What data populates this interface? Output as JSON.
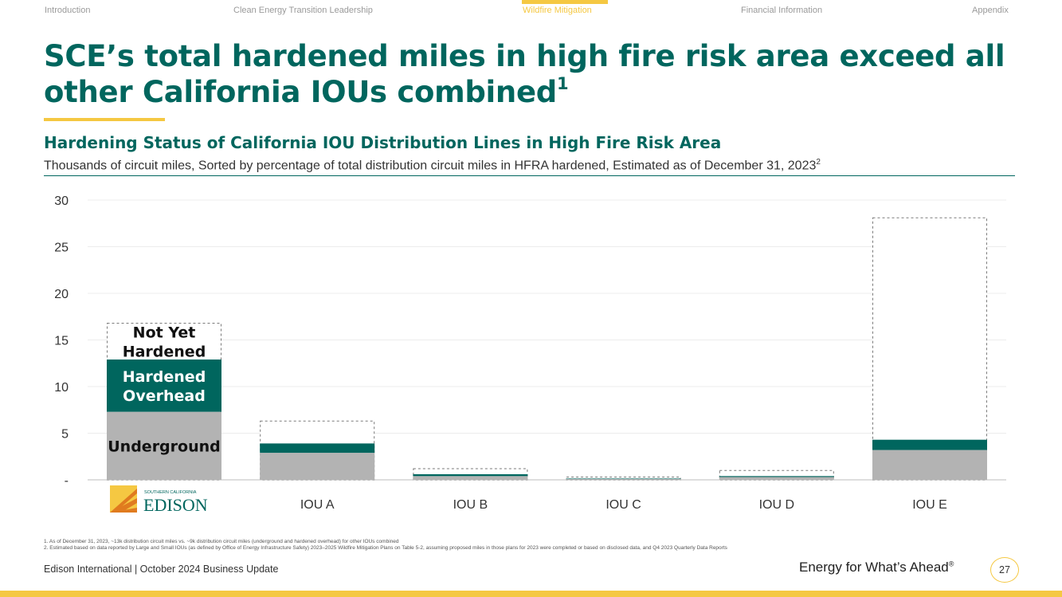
{
  "nav": {
    "items": [
      {
        "label": "Introduction",
        "active": false
      },
      {
        "label": "Clean Energy Transition Leadership",
        "active": false
      },
      {
        "label": "Wildfire Mitigation",
        "active": true
      },
      {
        "label": "Financial Information",
        "active": false
      },
      {
        "label": "Appendix",
        "active": false
      }
    ]
  },
  "slide": {
    "title": "SCE’s total hardened miles in high fire risk area exceed all other California IOUs combined",
    "title_footnote": "1",
    "chart_heading": "Hardening Status of California IOU Distribution Lines in High Fire Risk Area",
    "chart_subtitle": "Thousands of circuit miles, Sorted by percentage of total distribution circuit miles in HFRA hardened, Estimated as of December 31, 2023",
    "chart_subtitle_footnote": "2"
  },
  "logo": {
    "small_text": "SOUTHERN CALIFORNIA",
    "name": "EDISON"
  },
  "chart_data": {
    "type": "bar",
    "stacked": true,
    "categories": [
      "SCE",
      "IOU A",
      "IOU B",
      "IOU C",
      "IOU D",
      "IOU E"
    ],
    "category_labels": [
      "",
      "IOU A",
      "IOU B",
      "IOU C",
      "IOU D",
      "IOU E"
    ],
    "series": [
      {
        "name": "Underground",
        "values": [
          7.3,
          2.9,
          0.4,
          0.1,
          0.3,
          3.2
        ]
      },
      {
        "name": "Hardened Overhead",
        "values": [
          5.6,
          1.0,
          0.2,
          0.05,
          0.1,
          1.1
        ]
      },
      {
        "name": "Not Yet Hardened",
        "values": [
          3.9,
          2.4,
          0.6,
          0.15,
          0.6,
          23.8
        ]
      }
    ],
    "segment_labels": [
      "Underground",
      "Hardened Overhead",
      "Not Yet Hardened"
    ],
    "ylim": [
      0,
      30
    ],
    "yticks": [
      0,
      5,
      10,
      15,
      20,
      25,
      30
    ],
    "ytick_labels": [
      "-",
      "5",
      "10",
      "15",
      "20",
      "25",
      "30"
    ],
    "grid": true,
    "xlabel": "",
    "ylabel": "",
    "colors": {
      "Underground": "#b3b3b3",
      "Hardened Overhead": "#00665e",
      "Not Yet Hardened": "#ffffff"
    }
  },
  "footnotes": [
    "1.  As of December 31, 2023, ~13k distribution circuit miles vs. ~9k distribution circuit miles (underground and hardened overhead) for other IOUs combined",
    "2.  Estimated based on data reported by Large and Small IOUs (as defined by Office of Energy Infrastructure Safety) 2023–2025 Wildfire Mitigation Plans on Table 5-2, assuming proposed miles in those plans for 2023 were completed or based on disclosed data, and Q4 2023 Quarterly Data Reports"
  ],
  "footer": {
    "left": "Edison International |  October 2024 Business Update",
    "tagline": "Energy for What’s Ahead",
    "tagline_mark": "®",
    "page_number": "27"
  },
  "colors": {
    "accent_yellow": "#f5c842",
    "brand_teal": "#00665e"
  }
}
